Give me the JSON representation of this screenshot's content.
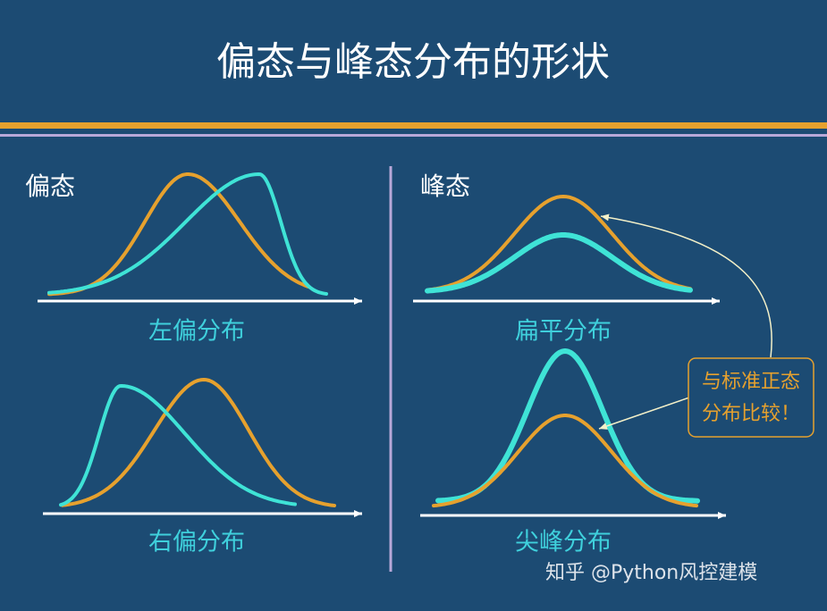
{
  "header": {
    "title": "偏态与峰态分布的形状"
  },
  "left_panel": {
    "heading": "偏态",
    "top_label": "左偏分布",
    "bottom_label": "右偏分布"
  },
  "right_panel": {
    "heading": "峰态",
    "top_label": "扁平分布",
    "bottom_label": "尖峰分布"
  },
  "callout": {
    "lines": [
      "与标准正态",
      "分布比较！"
    ]
  },
  "watermark": "知乎 @Python风控建模"
}
